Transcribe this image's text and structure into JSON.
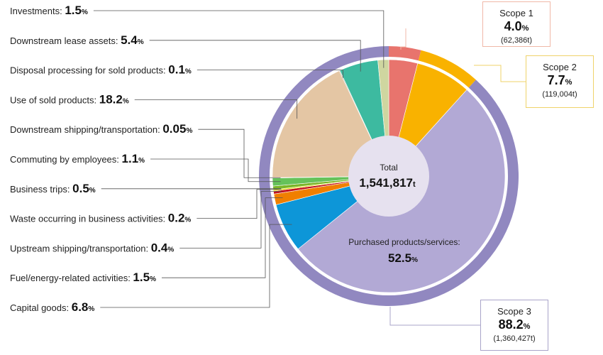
{
  "chart_data": {
    "type": "pie",
    "total": {
      "label": "Total",
      "value": "1,541,817",
      "unit": "t"
    },
    "outer_ring": [
      {
        "name": "Scope 1",
        "percent": 4.0,
        "value_pct": "4.0",
        "amount": "(62,386t)",
        "color": "#e8746d"
      },
      {
        "name": "Scope 2",
        "percent": 7.7,
        "value_pct": "7.7",
        "amount": "(119,004t)",
        "color": "#f9b200"
      },
      {
        "name": "Scope 3",
        "percent": 88.2,
        "value_pct": "88.2",
        "amount": "(1,360,427t)",
        "color": "#9188c0"
      }
    ],
    "inner_slices": [
      {
        "name": "Scope 1",
        "percent": 4.0,
        "color": "#e8746d"
      },
      {
        "name": "Scope 2",
        "percent": 7.7,
        "color": "#f9b200"
      },
      {
        "name": "Purchased products/services:",
        "percent": 52.5,
        "value_pct": "52.5",
        "color": "#b2a9d5"
      },
      {
        "name": "Capital goods:",
        "percent": 6.8,
        "value_pct": "6.8",
        "color": "#0d96d8"
      },
      {
        "name": "Fuel/energy-related activities:",
        "percent": 1.5,
        "value_pct": "1.5",
        "color": "#f07f00"
      },
      {
        "name": "Upstream shipping/transportation:",
        "percent": 0.4,
        "value_pct": "0.4",
        "color": "#c3121e"
      },
      {
        "name": "Waste occurring in business activities:",
        "percent": 0.2,
        "value_pct": "0.2",
        "color": "#e5de00"
      },
      {
        "name": "Business trips:",
        "percent": 0.5,
        "value_pct": "0.5",
        "color": "#7ab628"
      },
      {
        "name": "Commuting by employees:",
        "percent": 1.1,
        "value_pct": "1.1",
        "color": "#66c25a"
      },
      {
        "name": "Downstream shipping/transportation:",
        "percent": 0.05,
        "value_pct": "0.05",
        "color": "#4a8cc9"
      },
      {
        "name": "Use of sold products:",
        "percent": 18.2,
        "value_pct": "18.2",
        "color": "#e4c6a4"
      },
      {
        "name": "Disposal processing for sold products:",
        "percent": 0.1,
        "value_pct": "0.1",
        "color": "#8c7f6e"
      },
      {
        "name": "Downstream lease assets:",
        "percent": 5.4,
        "value_pct": "5.4",
        "color": "#3dbaa0"
      },
      {
        "name": "Investments:",
        "percent": 1.5,
        "value_pct": "1.5",
        "color": "#cfd6a0"
      }
    ],
    "left_labels": [
      {
        "name": "Investments:",
        "value": "1.5"
      },
      {
        "name": "Downstream lease assets:",
        "value": "5.4"
      },
      {
        "name": "Disposal processing for sold products:",
        "value": "0.1"
      },
      {
        "name": "Use of sold products:",
        "value": "18.2"
      },
      {
        "name": "Downstream shipping/transportation:",
        "value": "0.05"
      },
      {
        "name": "Commuting by employees:",
        "value": "1.1"
      },
      {
        "name": "Business trips:",
        "value": "0.5"
      },
      {
        "name": "Waste occurring in business activities:",
        "value": "0.2"
      },
      {
        "name": "Upstream shipping/transportation:",
        "value": "0.4"
      },
      {
        "name": "Fuel/energy-related activities:",
        "value": "1.5"
      },
      {
        "name": "Capital goods:",
        "value": "6.8"
      }
    ],
    "pct_symbol": "%",
    "line_color": "#555555",
    "center_fill": "#e6e1ef"
  }
}
